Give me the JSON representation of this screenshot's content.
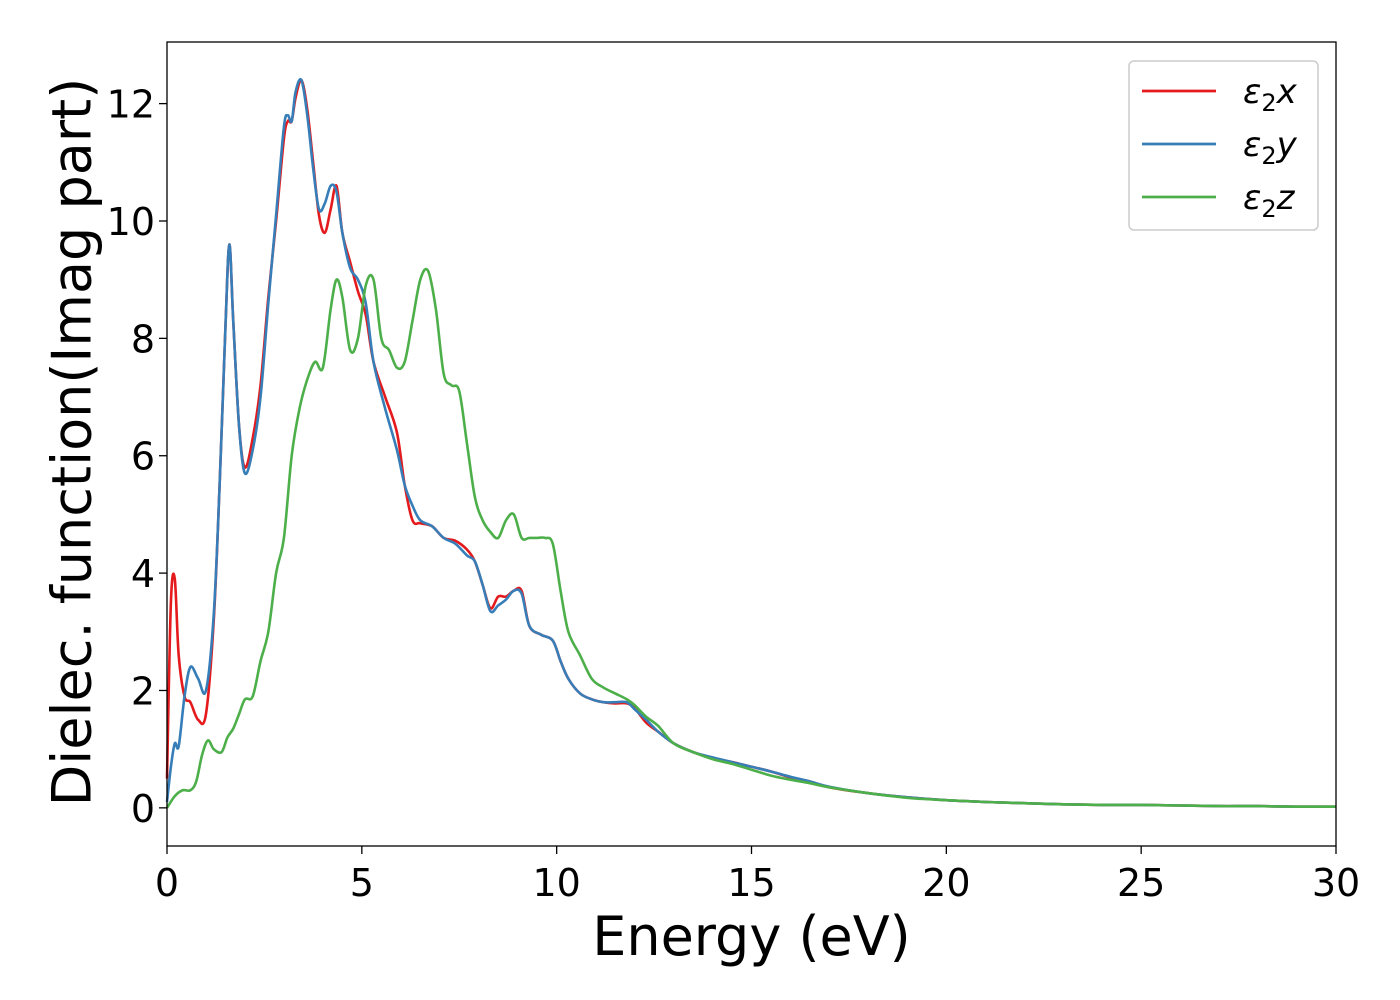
{
  "chart_data": {
    "type": "line",
    "xlabel": "Energy (eV)",
    "ylabel": "Dielec. function(Imag part)",
    "xlim": [
      0,
      30
    ],
    "ylim": [
      -0.65,
      13.05
    ],
    "xticks": [
      0,
      5,
      10,
      15,
      20,
      25,
      30
    ],
    "xtick_labels": [
      "0",
      "5",
      "10",
      "15",
      "20",
      "25",
      "30"
    ],
    "yticks": [
      0,
      2,
      4,
      6,
      8,
      10,
      12
    ],
    "ytick_labels": [
      "0",
      "2",
      "4",
      "6",
      "8",
      "10",
      "12"
    ],
    "grid": false,
    "legend_position": "top-right",
    "series": [
      {
        "name": "ε₂x",
        "label_base": "ε",
        "label_sub": "2",
        "label_var": "x",
        "color": "#e41a1c",
        "x": [
          0,
          0.1,
          0.2,
          0.3,
          0.45,
          0.6,
          0.8,
          1.0,
          1.2,
          1.35,
          1.5,
          1.6,
          1.7,
          1.85,
          2.0,
          2.2,
          2.4,
          2.6,
          2.8,
          3.0,
          3.1,
          3.2,
          3.3,
          3.45,
          3.6,
          3.75,
          3.9,
          4.05,
          4.2,
          4.35,
          4.5,
          4.7,
          4.9,
          5.1,
          5.3,
          5.6,
          5.9,
          6.1,
          6.3,
          6.5,
          6.8,
          7.1,
          7.4,
          7.7,
          7.9,
          8.1,
          8.3,
          8.5,
          8.7,
          8.9,
          9.1,
          9.3,
          9.6,
          9.9,
          10.1,
          10.3,
          10.6,
          10.9,
          11.2,
          11.5,
          11.8,
          12.0,
          12.3,
          12.6,
          13.0,
          13.5,
          14.0,
          14.5,
          15.0,
          15.5,
          16.0,
          16.5,
          17.0,
          18.0,
          19.0,
          20.0,
          21.0,
          22.0,
          23.0,
          24.0,
          25.0,
          26.0,
          27.0,
          28.0,
          29.0,
          30.0
        ],
        "y": [
          0.5,
          3.5,
          3.9,
          2.6,
          1.9,
          1.8,
          1.5,
          1.6,
          3.2,
          5.5,
          8.2,
          9.6,
          8.3,
          6.5,
          5.8,
          6.3,
          7.2,
          8.7,
          10.0,
          11.4,
          11.7,
          11.7,
          12.1,
          12.4,
          11.9,
          11.0,
          10.1,
          9.8,
          10.2,
          10.6,
          9.8,
          9.3,
          8.8,
          8.4,
          7.6,
          7.0,
          6.4,
          5.5,
          4.9,
          4.85,
          4.8,
          4.6,
          4.55,
          4.4,
          4.2,
          3.8,
          3.4,
          3.6,
          3.6,
          3.7,
          3.7,
          3.1,
          2.95,
          2.85,
          2.5,
          2.2,
          1.95,
          1.85,
          1.8,
          1.78,
          1.78,
          1.7,
          1.45,
          1.3,
          1.1,
          0.95,
          0.85,
          0.78,
          0.7,
          0.62,
          0.52,
          0.45,
          0.35,
          0.25,
          0.18,
          0.13,
          0.1,
          0.08,
          0.06,
          0.05,
          0.05,
          0.04,
          0.03,
          0.03,
          0.02,
          0.02
        ]
      },
      {
        "name": "ε₂y",
        "label_base": "ε",
        "label_sub": "2",
        "label_var": "y",
        "color": "#377eb8",
        "x": [
          0,
          0.1,
          0.2,
          0.3,
          0.45,
          0.6,
          0.8,
          1.0,
          1.2,
          1.35,
          1.5,
          1.6,
          1.7,
          1.85,
          2.0,
          2.2,
          2.4,
          2.6,
          2.8,
          3.0,
          3.1,
          3.2,
          3.3,
          3.45,
          3.6,
          3.75,
          3.9,
          4.05,
          4.2,
          4.35,
          4.5,
          4.7,
          4.9,
          5.1,
          5.3,
          5.6,
          5.9,
          6.1,
          6.3,
          6.5,
          6.8,
          7.1,
          7.4,
          7.7,
          7.9,
          8.1,
          8.3,
          8.5,
          8.7,
          8.9,
          9.1,
          9.3,
          9.6,
          9.9,
          10.1,
          10.3,
          10.6,
          10.9,
          11.2,
          11.5,
          11.8,
          12.0,
          12.3,
          12.6,
          13.0,
          13.5,
          14.0,
          14.5,
          15.0,
          15.5,
          16.0,
          16.5,
          17.0,
          18.0,
          19.0,
          20.0,
          21.0,
          22.0,
          23.0,
          24.0,
          25.0,
          26.0,
          27.0,
          28.0,
          29.0,
          30.0
        ],
        "y": [
          0.1,
          0.7,
          1.1,
          1.05,
          1.9,
          2.4,
          2.2,
          2.0,
          3.3,
          5.5,
          8.2,
          9.6,
          8.3,
          6.5,
          5.7,
          6.1,
          7.0,
          8.6,
          10.1,
          11.6,
          11.8,
          11.7,
          12.2,
          12.4,
          11.8,
          10.9,
          10.2,
          10.3,
          10.6,
          10.5,
          9.8,
          9.2,
          9.0,
          8.6,
          7.6,
          6.8,
          6.1,
          5.5,
          5.15,
          4.9,
          4.8,
          4.6,
          4.5,
          4.3,
          4.2,
          3.8,
          3.35,
          3.45,
          3.55,
          3.7,
          3.65,
          3.1,
          2.95,
          2.85,
          2.5,
          2.2,
          1.95,
          1.85,
          1.8,
          1.8,
          1.8,
          1.68,
          1.5,
          1.3,
          1.1,
          0.95,
          0.86,
          0.78,
          0.7,
          0.62,
          0.53,
          0.45,
          0.36,
          0.25,
          0.18,
          0.13,
          0.1,
          0.08,
          0.06,
          0.05,
          0.05,
          0.04,
          0.03,
          0.03,
          0.02,
          0.02
        ]
      },
      {
        "name": "ε₂z",
        "label_base": "ε",
        "label_sub": "2",
        "label_var": "z",
        "color": "#4daf4a",
        "x": [
          0,
          0.2,
          0.4,
          0.6,
          0.75,
          0.9,
          1.05,
          1.2,
          1.4,
          1.55,
          1.7,
          1.85,
          2.0,
          2.2,
          2.4,
          2.6,
          2.8,
          3.0,
          3.2,
          3.4,
          3.6,
          3.8,
          4.0,
          4.2,
          4.35,
          4.5,
          4.7,
          4.9,
          5.1,
          5.3,
          5.5,
          5.7,
          5.9,
          6.1,
          6.3,
          6.5,
          6.7,
          6.9,
          7.1,
          7.3,
          7.5,
          7.7,
          7.9,
          8.1,
          8.3,
          8.5,
          8.7,
          8.9,
          9.1,
          9.3,
          9.5,
          9.7,
          9.9,
          10.1,
          10.3,
          10.6,
          10.9,
          11.2,
          11.5,
          11.8,
          12.0,
          12.3,
          12.6,
          13.0,
          13.5,
          14.0,
          14.5,
          15.0,
          15.5,
          16.0,
          16.5,
          17.0,
          18.0,
          19.0,
          20.0,
          21.0,
          22.0,
          23.0,
          24.0,
          25.0,
          26.0,
          27.0,
          28.0,
          29.0,
          30.0
        ],
        "y": [
          0.0,
          0.2,
          0.3,
          0.3,
          0.45,
          0.9,
          1.15,
          1.0,
          0.95,
          1.2,
          1.35,
          1.6,
          1.85,
          1.9,
          2.5,
          3.0,
          4.0,
          4.6,
          6.0,
          6.8,
          7.3,
          7.6,
          7.5,
          8.5,
          9.0,
          8.7,
          7.8,
          8.0,
          8.9,
          9.0,
          8.0,
          7.8,
          7.5,
          7.6,
          8.3,
          9.0,
          9.15,
          8.5,
          7.4,
          7.2,
          7.1,
          6.2,
          5.3,
          4.9,
          4.7,
          4.6,
          4.9,
          5.0,
          4.6,
          4.6,
          4.6,
          4.6,
          4.5,
          3.7,
          3.0,
          2.6,
          2.2,
          2.05,
          1.95,
          1.85,
          1.75,
          1.55,
          1.4,
          1.1,
          0.95,
          0.83,
          0.75,
          0.65,
          0.55,
          0.48,
          0.42,
          0.35,
          0.25,
          0.17,
          0.13,
          0.1,
          0.08,
          0.06,
          0.05,
          0.05,
          0.04,
          0.03,
          0.03,
          0.02,
          0.02
        ]
      }
    ]
  }
}
